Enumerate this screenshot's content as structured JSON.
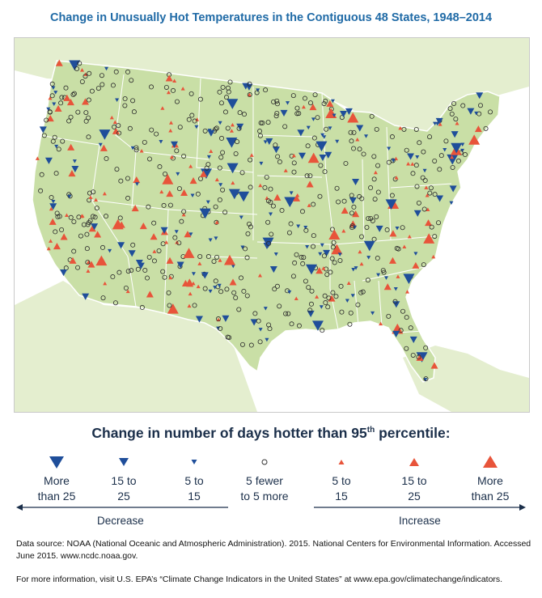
{
  "title": "Change in Unusually Hot Temperatures in the Contiguous 48 States, 1948–2014",
  "legend": {
    "title_main": "Change in number of days hotter than 95",
    "title_sup": "th",
    "title_end": " percentile:",
    "items": [
      {
        "label": "More\nthan 25",
        "symbol": "down-triangle-large",
        "color": "#1f4e9a"
      },
      {
        "label": "15 to\n25",
        "symbol": "down-triangle-medium",
        "color": "#1f4e9a"
      },
      {
        "label": "5 to\n15",
        "symbol": "down-triangle-small",
        "color": "#1f4e9a"
      },
      {
        "label": "5 fewer\nto 5 more",
        "symbol": "open-circle",
        "color": "#333333"
      },
      {
        "label": "5 to\n15",
        "symbol": "up-triangle-small",
        "color": "#e8543a"
      },
      {
        "label": "15 to\n25",
        "symbol": "up-triangle-medium",
        "color": "#e8543a"
      },
      {
        "label": "More\nthan 25",
        "symbol": "up-triangle-large",
        "color": "#e8543a"
      }
    ],
    "decrease_label": "Decrease",
    "increase_label": "Increase"
  },
  "source_text": "Data source: NOAA (National Oceanic and Atmospheric Administration). 2015. National Centers for Environmental Information. Accessed June 2015. www.ncdc.noaa.gov.",
  "more_info_text": "For more information, visit U.S. EPA’s “Climate Change Indicators in the United States” at www.epa.gov/climatechange/indicators.",
  "colors": {
    "title": "#1f6aa6",
    "land": "#c9dfa6",
    "neighbor_land": "#e4eecf",
    "decrease": "#1f4e9a",
    "increase": "#e8543a",
    "border": "#ffffff"
  }
}
